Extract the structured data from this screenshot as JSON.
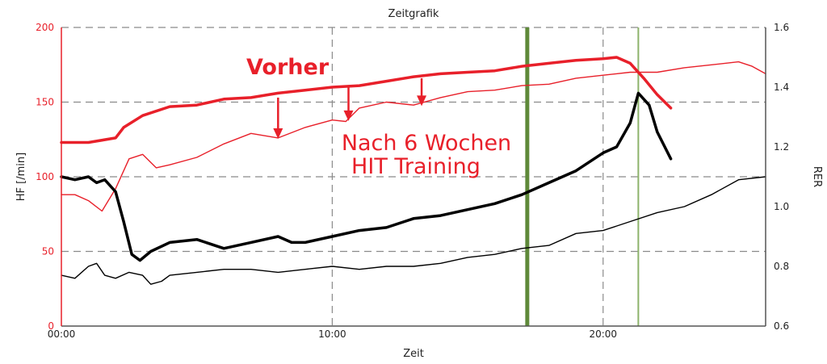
{
  "chart_data": {
    "type": "line",
    "title": "Zeitgrafik",
    "xlabel": "Zeit",
    "ylabel_left": "HF [/min]",
    "ylabel_right": "RER",
    "x_range_min": [
      0,
      26
    ],
    "ylim_left": [
      0,
      200
    ],
    "ylim_right": [
      0.6,
      1.6
    ],
    "x_ticks": [
      "00:00",
      "10:00",
      "20:00"
    ],
    "y_ticks_left": [
      "0",
      "50",
      "100",
      "150",
      "200"
    ],
    "y_ticks_right": [
      "0.6",
      "0.8",
      "1.0",
      "1.2",
      "1.4",
      "1.6"
    ],
    "grid": true,
    "colors": {
      "hf_before": "#e8202a",
      "hf_after": "#e8202a",
      "rer_before": "#000000",
      "rer_after": "#000000",
      "marker_bold": "#5f8a3a",
      "marker_thin": "#8db36b",
      "arrow": "#e8202a",
      "left_axis": "#e8202a"
    },
    "series": [
      {
        "key": "hf_before",
        "axis": "left",
        "x": [
          0,
          1,
          2,
          2.3,
          3,
          4,
          5,
          6,
          7,
          8,
          9,
          10,
          11,
          12,
          13,
          14,
          15,
          16,
          17,
          18,
          19,
          20,
          20.5,
          21,
          21.5,
          22,
          22.5
        ],
        "y": [
          123,
          123,
          126,
          133,
          141,
          147,
          148,
          152,
          153,
          156,
          158,
          160,
          161,
          164,
          167,
          169,
          170,
          171,
          174,
          176,
          178,
          179,
          180,
          176,
          166,
          155,
          146
        ]
      },
      {
        "key": "hf_after",
        "axis": "left",
        "x": [
          0,
          0.5,
          1,
          1.5,
          2,
          2.5,
          3,
          3.5,
          4,
          5,
          6,
          7,
          8,
          9,
          10,
          10.5,
          11,
          12,
          13,
          14,
          15,
          16,
          17,
          18,
          19,
          20,
          21,
          22,
          23,
          24,
          25,
          25.5,
          26
        ],
        "y": [
          88,
          88,
          84,
          77,
          92,
          112,
          115,
          106,
          108,
          113,
          122,
          129,
          126,
          133,
          138,
          137,
          146,
          150,
          148,
          153,
          157,
          158,
          161,
          162,
          166,
          168,
          170,
          170,
          173,
          175,
          177,
          174,
          169
        ]
      },
      {
        "key": "rer_before",
        "axis": "right",
        "x": [
          0,
          0.5,
          1,
          1.3,
          1.6,
          2,
          2.3,
          2.6,
          2.9,
          3.3,
          4,
          5,
          6,
          7,
          8,
          8.5,
          9,
          10,
          11,
          12,
          13,
          14,
          15,
          16,
          17,
          18,
          19,
          20,
          20.5,
          21,
          21.3,
          21.7,
          22,
          22.5
        ],
        "y": [
          1.1,
          1.09,
          1.1,
          1.08,
          1.09,
          1.05,
          0.95,
          0.84,
          0.82,
          0.85,
          0.88,
          0.89,
          0.86,
          0.88,
          0.9,
          0.88,
          0.88,
          0.9,
          0.92,
          0.93,
          0.96,
          0.97,
          0.99,
          1.01,
          1.04,
          1.08,
          1.12,
          1.18,
          1.2,
          1.28,
          1.38,
          1.34,
          1.25,
          1.16
        ]
      },
      {
        "key": "rer_after",
        "axis": "right",
        "x": [
          0,
          0.5,
          1,
          1.3,
          1.6,
          2,
          2.5,
          3,
          3.3,
          3.7,
          4,
          5,
          6,
          7,
          8,
          9,
          10,
          11,
          12,
          13,
          14,
          15,
          16,
          17,
          18,
          19,
          20,
          21,
          22,
          23,
          24,
          25,
          26
        ],
        "y": [
          0.77,
          0.76,
          0.8,
          0.81,
          0.77,
          0.76,
          0.78,
          0.77,
          0.74,
          0.75,
          0.77,
          0.78,
          0.79,
          0.79,
          0.78,
          0.79,
          0.8,
          0.79,
          0.8,
          0.8,
          0.81,
          0.83,
          0.84,
          0.86,
          0.87,
          0.91,
          0.92,
          0.95,
          0.98,
          1.0,
          1.04,
          1.09,
          1.1
        ]
      }
    ],
    "vertical_markers_min": [
      {
        "x": 17.2,
        "style": "bold"
      },
      {
        "x": 21.3,
        "style": "thin"
      }
    ],
    "arrows": [
      {
        "x": 8,
        "from": 153,
        "to": 127
      },
      {
        "x": 10.6,
        "from": 160,
        "to": 139
      },
      {
        "x": 13.3,
        "from": 166,
        "to": 149
      }
    ],
    "annotations": {
      "before": "Vorher",
      "after_line1": "Nach 6 Wochen",
      "after_line2": "HIT Training"
    }
  }
}
